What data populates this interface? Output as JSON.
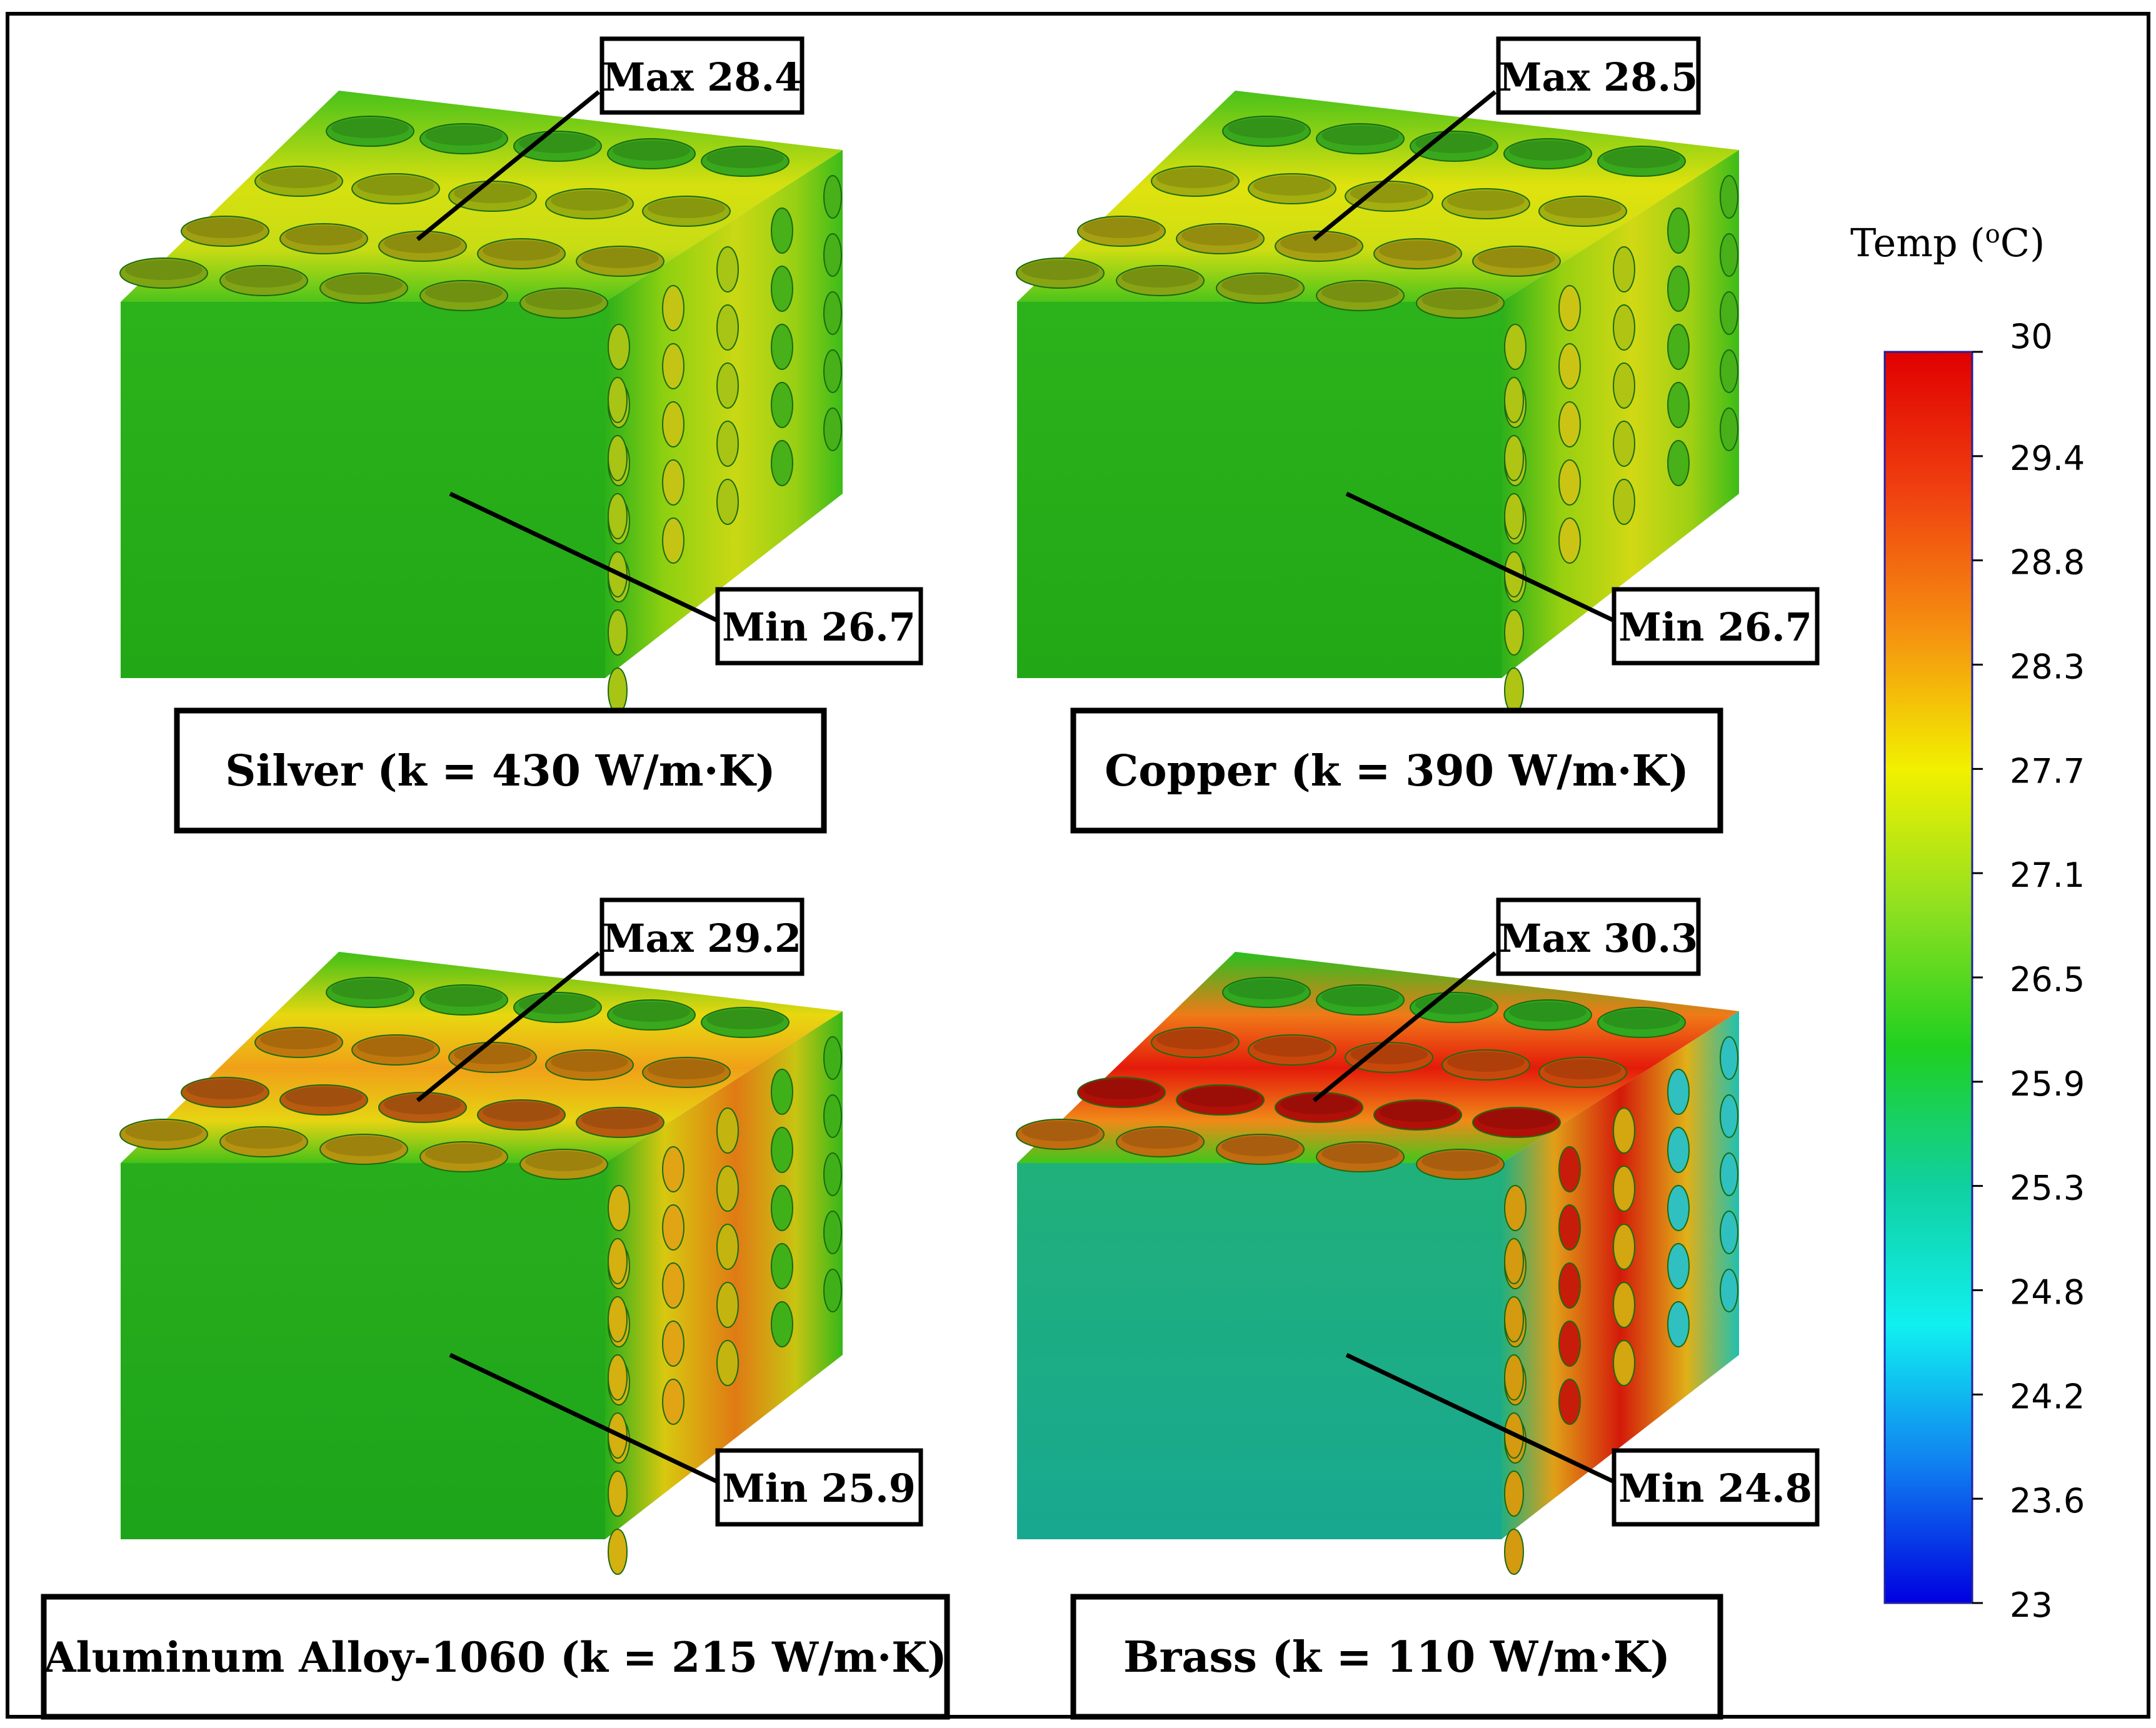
{
  "panels": [
    {
      "material": "Silver (k = 430 W/m·K)",
      "max_label": "Max 28.4",
      "min_label": "Min 26.7",
      "max_temp": 28.4,
      "min_temp": 26.7
    },
    {
      "material": "Copper (k = 390 W/m·K)",
      "max_label": "Max 28.5",
      "min_label": "Min 26.7",
      "max_temp": 28.5,
      "min_temp": 26.7
    },
    {
      "material": "Aluminum Alloy-1060 (k = 215 W/m·K)",
      "max_label": "Max 29.2",
      "min_label": "Min 25.9",
      "max_temp": 29.2,
      "min_temp": 25.9
    },
    {
      "material": "Brass (k = 110 W/m·K)",
      "max_label": "Max 30.3",
      "min_label": "Min 24.8",
      "max_temp": 30.3,
      "min_temp": 24.8
    }
  ],
  "colorbar": {
    "title": "Temp (",
    "title_sup": "o",
    "title_end": "C)",
    "ticks": [
      "30",
      "29.4",
      "28.8",
      "28.3",
      "27.7",
      "27.1",
      "26.5",
      "25.9",
      "25.3",
      "24.8",
      "24.2",
      "23.6",
      "23"
    ],
    "range": [
      23,
      30
    ],
    "colors": [
      "#e00000",
      "#f04010",
      "#f59010",
      "#f2f000",
      "#90e020",
      "#20d020",
      "#10d0a0",
      "#10f0f0",
      "#1080f0",
      "#0000e0"
    ]
  }
}
